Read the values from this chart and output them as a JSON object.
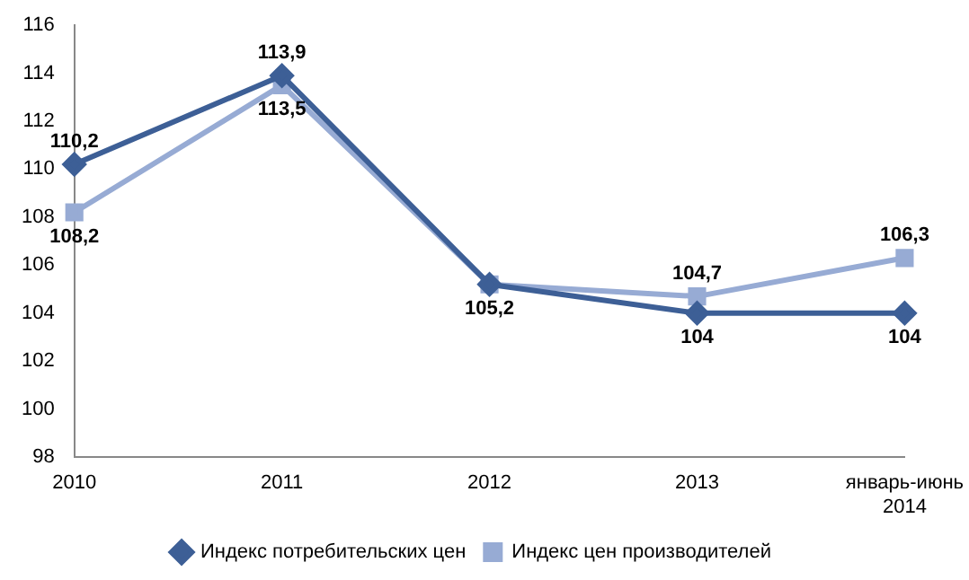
{
  "chart_data": {
    "type": "line",
    "categories": [
      "2010",
      "2011",
      "2012",
      "2013",
      "январь-июнь 2014"
    ],
    "series": [
      {
        "name": "Индекс потребительских цен",
        "color": "#3d5f96",
        "marker": "diamond",
        "values": [
          110.2,
          113.9,
          105.2,
          104,
          104
        ],
        "value_labels": [
          "110,2",
          "113,9",
          null,
          "104",
          "104"
        ]
      },
      {
        "name": "Индекс цен производителей",
        "color": "#97abd4",
        "marker": "square",
        "values": [
          108.2,
          113.5,
          105.2,
          104.7,
          106.3
        ],
        "value_labels": [
          "108,2",
          "113,5",
          "105,2",
          "104,7",
          "106,3"
        ]
      }
    ],
    "ylim": [
      98,
      116
    ],
    "yticks": [
      98,
      100,
      102,
      104,
      106,
      108,
      110,
      112,
      114,
      116
    ],
    "grid": false,
    "legend": "bottom",
    "line_style": "solid"
  }
}
